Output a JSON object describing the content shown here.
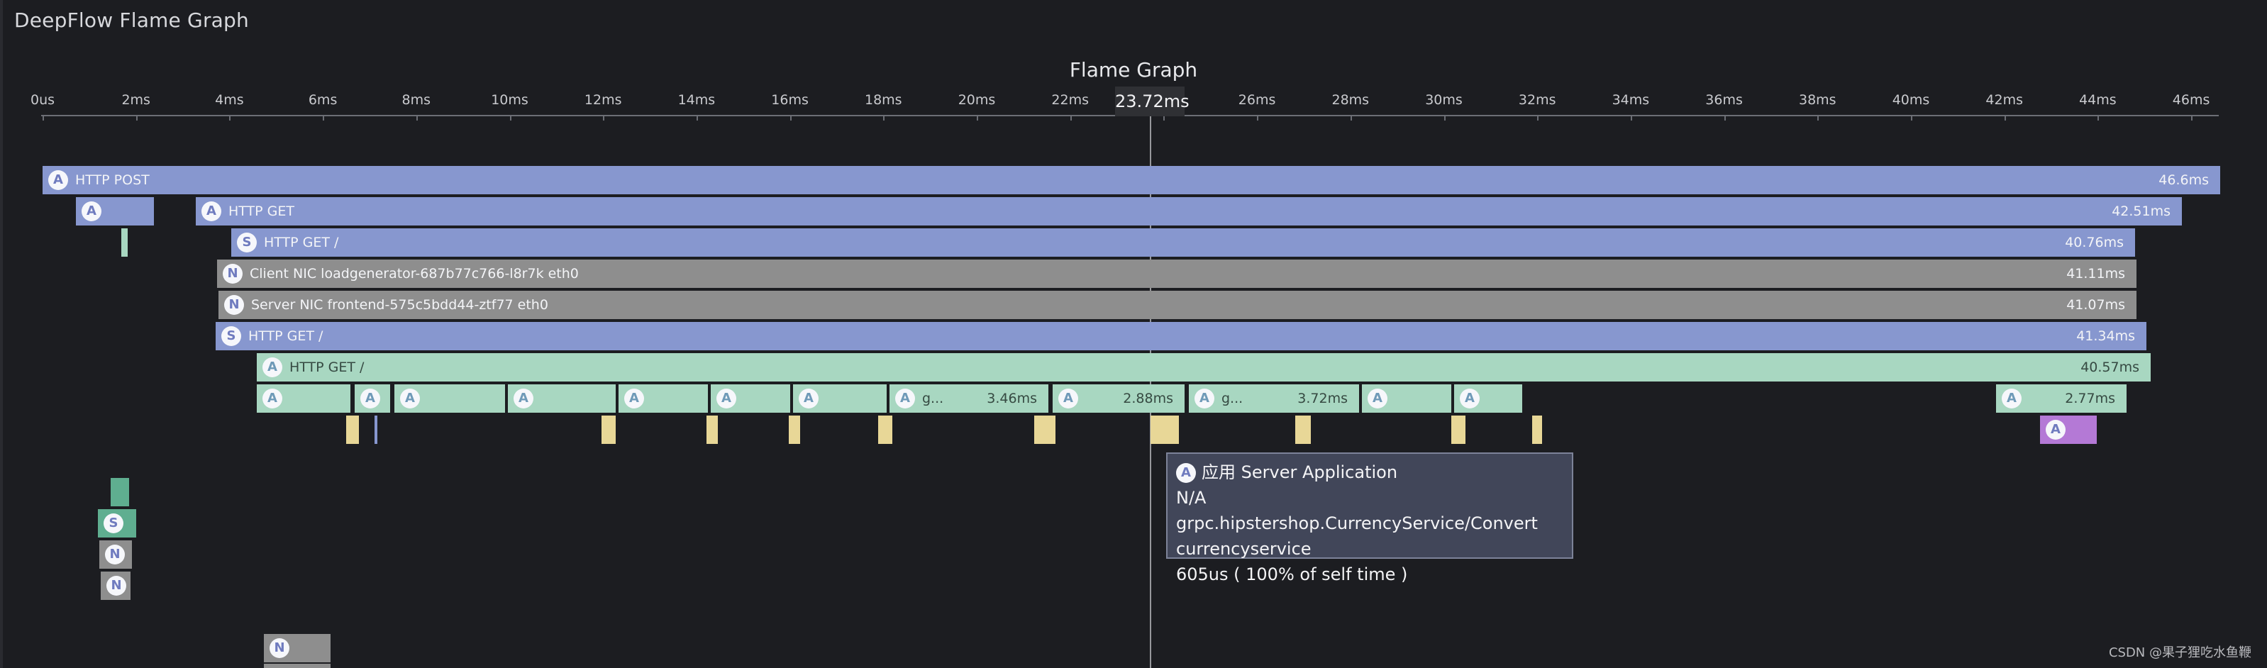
{
  "app": {
    "title": "DeepFlow Flame Graph"
  },
  "chart": {
    "title": "Flame Graph",
    "cursor_value": "23.72ms",
    "ticks": [
      "0us",
      "2ms",
      "4ms",
      "6ms",
      "8ms",
      "10ms",
      "12ms",
      "14ms",
      "16ms",
      "18ms",
      "20ms",
      "22ms",
      "24ms",
      "26ms",
      "28ms",
      "30ms",
      "32ms",
      "34ms",
      "36ms",
      "38ms",
      "40ms",
      "42ms",
      "44ms",
      "46ms"
    ]
  },
  "rows": {
    "r1": {
      "badge": "A",
      "label": "HTTP POST",
      "duration": "46.6ms"
    },
    "r2a": {
      "badge": "A"
    },
    "r2b": {
      "badge": "A",
      "label": "HTTP GET",
      "duration": "42.51ms"
    },
    "r3": {
      "badge": "S",
      "label": "HTTP GET /",
      "duration": "40.76ms"
    },
    "r4": {
      "badge": "N",
      "label": "Client NIC loadgenerator-687b77c766-l8r7k eth0",
      "duration": "41.11ms"
    },
    "r5": {
      "badge": "N",
      "label": "Server NIC frontend-575c5bdd44-ztf77 eth0",
      "duration": "41.07ms"
    },
    "r6": {
      "badge": "S",
      "label": "HTTP GET /",
      "duration": "41.34ms"
    },
    "r7": {
      "badge": "A",
      "label": "HTTP GET /",
      "duration": "40.57ms"
    },
    "r8": [
      {
        "badge": "A",
        "label": "",
        "duration": ""
      },
      {
        "badge": "A",
        "label": "",
        "duration": ""
      },
      {
        "badge": "A",
        "label": "",
        "duration": ""
      },
      {
        "badge": "A",
        "label": "",
        "duration": ""
      },
      {
        "badge": "A",
        "label": "",
        "duration": ""
      },
      {
        "badge": "A",
        "label": "",
        "duration": ""
      },
      {
        "badge": "A",
        "label": "",
        "duration": ""
      },
      {
        "badge": "A",
        "label": "g...",
        "duration": "3.46ms"
      },
      {
        "badge": "A",
        "label": "",
        "duration": "2.88ms"
      },
      {
        "badge": "A",
        "label": "g...",
        "duration": "3.72ms"
      },
      {
        "badge": "A",
        "label": "",
        "duration": ""
      },
      {
        "badge": "A",
        "label": "",
        "duration": ""
      },
      {
        "badge": "A",
        "label": "",
        "duration": "2.77ms"
      }
    ],
    "r9_purple": {
      "badge": "A"
    },
    "left_s": {
      "badge": "S"
    },
    "left_n1": {
      "badge": "N"
    },
    "left_n2": {
      "badge": "N"
    },
    "bottom_n": {
      "badge": "N"
    }
  },
  "tooltip": {
    "badge": "A",
    "line1": "应用 Server Application",
    "line2": "N/A grpc.hipstershop.CurrencyService/Convert",
    "line3": "currencyservice",
    "line4": "605us ( 100% of self time )"
  },
  "watermark": "CSDN @果子狸吃水鱼鞭"
}
